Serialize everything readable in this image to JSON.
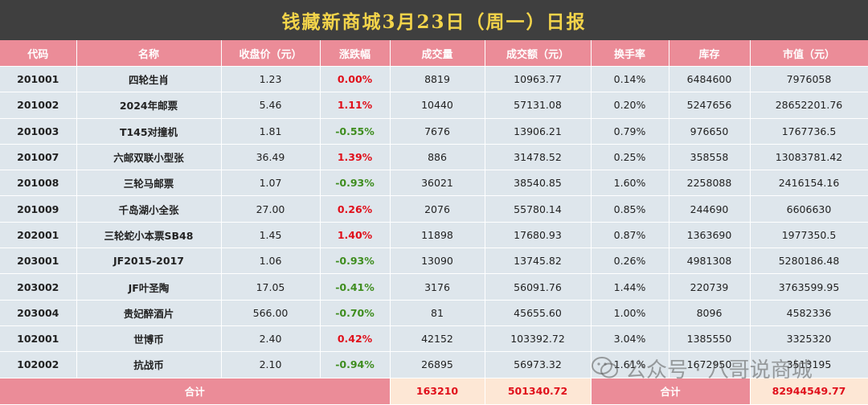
{
  "title": "钱藏新商城3月23日（周一）日报",
  "columns": [
    "代码",
    "名称",
    "收盘价（元）",
    "涨跌幅",
    "成交量",
    "成交额（元）",
    "换手率",
    "库存",
    "市值（元）"
  ],
  "rows": [
    {
      "code": "201001",
      "name": "四轮生肖",
      "close": "1.23",
      "change": "0.00%",
      "trend": "up",
      "volume": "8819",
      "turnover": "10963.77",
      "rate": "0.14%",
      "stock": "6484600",
      "cap": "7976058"
    },
    {
      "code": "201002",
      "name": "2024年邮票",
      "close": "5.46",
      "change": "1.11%",
      "trend": "up",
      "volume": "10440",
      "turnover": "57131.08",
      "rate": "0.20%",
      "stock": "5247656",
      "cap": "28652201.76"
    },
    {
      "code": "201003",
      "name": "T145对撞机",
      "close": "1.81",
      "change": "-0.55%",
      "trend": "down",
      "volume": "7676",
      "turnover": "13906.21",
      "rate": "0.79%",
      "stock": "976650",
      "cap": "1767736.5"
    },
    {
      "code": "201007",
      "name": "六邮双联小型张",
      "close": "36.49",
      "change": "1.39%",
      "trend": "up",
      "volume": "886",
      "turnover": "31478.52",
      "rate": "0.25%",
      "stock": "358558",
      "cap": "13083781.42"
    },
    {
      "code": "201008",
      "name": "三轮马邮票",
      "close": "1.07",
      "change": "-0.93%",
      "trend": "down",
      "volume": "36021",
      "turnover": "38540.85",
      "rate": "1.60%",
      "stock": "2258088",
      "cap": "2416154.16"
    },
    {
      "code": "201009",
      "name": "千岛湖小全张",
      "close": "27.00",
      "change": "0.26%",
      "trend": "up",
      "volume": "2076",
      "turnover": "55780.14",
      "rate": "0.85%",
      "stock": "244690",
      "cap": "6606630"
    },
    {
      "code": "202001",
      "name": "三轮蛇小本票SB48",
      "close": "1.45",
      "change": "1.40%",
      "trend": "up",
      "volume": "11898",
      "turnover": "17680.93",
      "rate": "0.87%",
      "stock": "1363690",
      "cap": "1977350.5"
    },
    {
      "code": "203001",
      "name": "JF2015-2017",
      "close": "1.06",
      "change": "-0.93%",
      "trend": "down",
      "volume": "13090",
      "turnover": "13745.82",
      "rate": "0.26%",
      "stock": "4981308",
      "cap": "5280186.48"
    },
    {
      "code": "203002",
      "name": "JF叶圣陶",
      "close": "17.05",
      "change": "-0.41%",
      "trend": "down",
      "volume": "3176",
      "turnover": "56091.76",
      "rate": "1.44%",
      "stock": "220739",
      "cap": "3763599.95"
    },
    {
      "code": "203004",
      "name": "贵妃醉酒片",
      "close": "566.00",
      "change": "-0.70%",
      "trend": "down",
      "volume": "81",
      "turnover": "45655.60",
      "rate": "1.00%",
      "stock": "8096",
      "cap": "4582336"
    },
    {
      "code": "102001",
      "name": "世博币",
      "close": "2.40",
      "change": "0.42%",
      "trend": "up",
      "volume": "42152",
      "turnover": "103392.72",
      "rate": "3.04%",
      "stock": "1385550",
      "cap": "3325320"
    },
    {
      "code": "102002",
      "name": "抗战币",
      "close": "2.10",
      "change": "-0.94%",
      "trend": "down",
      "volume": "26895",
      "turnover": "56973.32",
      "rate": "1.61%",
      "stock": "1672950",
      "cap": "3513195"
    }
  ],
  "totals": {
    "label": "合计",
    "volume": "163210",
    "turnover": "501340.72",
    "label2": "合计",
    "cap": "82944549.77"
  },
  "watermark": "公众号 · 八哥说商城",
  "colors": {
    "header_bg": "#eb8c98",
    "row_bg": "#dee6ec",
    "up": "#e0101b",
    "down": "#3f8d1f",
    "title_bg": "#3f3f3f",
    "title_text": "#f3d44a"
  }
}
